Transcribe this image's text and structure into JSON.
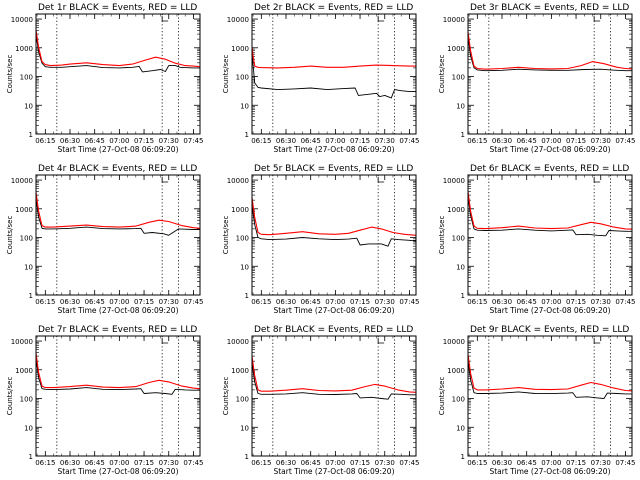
{
  "panel_common": {
    "ylabel": "Counts/sec",
    "xlabel": "Start Time (27-Oct-08 06:09:20)",
    "y_ticks": [
      "1",
      "10",
      "100",
      "1000",
      "10000"
    ],
    "x_ticks": [
      "06:15",
      "06:30",
      "06:45",
      "07:00",
      "07:15",
      "07:30",
      "07:45"
    ]
  },
  "colors": {
    "events": "#000000",
    "lld": "#ff0000",
    "axes": "#000000"
  },
  "chart_data": [
    {
      "type": "line",
      "title": "Det 1r BLACK = Events, RED = LLD",
      "y_scale": "log",
      "ylim": [
        1,
        15000
      ],
      "xlim": [
        "06:09:20",
        "07:49:00"
      ],
      "vlines": [
        "06:22",
        "07:26",
        "07:36"
      ],
      "series": [
        {
          "name": "Events",
          "color": "#000000",
          "x": [
            "06:09:20",
            "06:11",
            "06:13",
            "06:15",
            "06:18",
            "06:25",
            "06:30",
            "06:40",
            "06:50",
            "07:00",
            "07:08",
            "07:12",
            "07:14",
            "07:20",
            "07:25",
            "07:28",
            "07:30",
            "07:34",
            "07:37",
            "07:40",
            "07:45",
            "07:49"
          ],
          "y": [
            2800,
            700,
            290,
            220,
            210,
            210,
            220,
            240,
            205,
            200,
            210,
            225,
            145,
            160,
            175,
            150,
            240,
            240,
            210,
            205,
            200,
            200
          ]
        },
        {
          "name": "LLD",
          "color": "#ff0000",
          "x": [
            "06:09:20",
            "06:11",
            "06:13",
            "06:15",
            "06:18",
            "06:25",
            "06:30",
            "06:40",
            "06:50",
            "07:00",
            "07:08",
            "07:15",
            "07:22",
            "07:28",
            "07:34",
            "07:40",
            "07:45",
            "07:49"
          ],
          "y": [
            4200,
            1000,
            330,
            260,
            240,
            250,
            270,
            300,
            260,
            240,
            270,
            360,
            470,
            400,
            290,
            240,
            230,
            220
          ]
        }
      ]
    },
    {
      "type": "line",
      "title": "Det 2r BLACK = Events, RED = LLD",
      "y_scale": "log",
      "ylim": [
        1,
        15000
      ],
      "xlim": [
        "06:09:20",
        "07:49:00"
      ],
      "vlines": [
        "06:22",
        "07:26",
        "07:36"
      ],
      "series": [
        {
          "name": "Events",
          "color": "#000000",
          "x": [
            "06:09:20",
            "06:10",
            "06:11",
            "06:13",
            "06:15",
            "06:25",
            "06:35",
            "06:45",
            "06:55",
            "07:05",
            "07:12",
            "07:14",
            "07:20",
            "07:25",
            "07:27",
            "07:30",
            "07:34",
            "07:36",
            "07:40",
            "07:45",
            "07:49"
          ],
          "y": [
            700,
            250,
            60,
            42,
            40,
            35,
            37,
            40,
            35,
            38,
            40,
            22,
            24,
            26,
            20,
            22,
            18,
            35,
            32,
            30,
            30
          ]
        },
        {
          "name": "LLD",
          "color": "#ff0000",
          "x": [
            "06:09:20",
            "06:10",
            "06:11",
            "06:13",
            "06:15",
            "06:25",
            "06:35",
            "06:45",
            "06:55",
            "07:05",
            "07:15",
            "07:25",
            "07:35",
            "07:45",
            "07:49"
          ],
          "y": [
            1100,
            500,
            230,
            210,
            205,
            200,
            210,
            230,
            210,
            210,
            230,
            250,
            240,
            230,
            230
          ]
        }
      ]
    },
    {
      "type": "line",
      "title": "Det 3r BLACK = Events, RED = LLD",
      "y_scale": "log",
      "ylim": [
        1,
        15000
      ],
      "xlim": [
        "06:09:20",
        "07:49:00"
      ],
      "vlines": [
        "06:22",
        "07:26",
        "07:36"
      ],
      "series": [
        {
          "name": "Events",
          "color": "#000000",
          "x": [
            "06:09:20",
            "06:11",
            "06:13",
            "06:15",
            "06:20",
            "06:30",
            "06:40",
            "06:50",
            "07:00",
            "07:10",
            "07:20",
            "07:30",
            "07:36",
            "07:40",
            "07:45",
            "07:49"
          ],
          "y": [
            2300,
            500,
            200,
            170,
            160,
            165,
            180,
            170,
            165,
            165,
            175,
            180,
            170,
            165,
            160,
            160
          ]
        },
        {
          "name": "LLD",
          "color": "#ff0000",
          "x": [
            "06:09:20",
            "06:11",
            "06:13",
            "06:15",
            "06:20",
            "06:30",
            "06:40",
            "06:50",
            "07:00",
            "07:10",
            "07:18",
            "07:25",
            "07:32",
            "07:40",
            "07:45",
            "07:49"
          ],
          "y": [
            3600,
            750,
            230,
            190,
            180,
            190,
            210,
            190,
            185,
            190,
            240,
            330,
            280,
            210,
            190,
            185
          ]
        }
      ]
    },
    {
      "type": "line",
      "title": "Det 4r BLACK = Events, RED = LLD",
      "y_scale": "log",
      "ylim": [
        1,
        15000
      ],
      "xlim": [
        "06:09:20",
        "07:49:00"
      ],
      "vlines": [
        "06:22",
        "07:26",
        "07:36"
      ],
      "series": [
        {
          "name": "Events",
          "color": "#000000",
          "x": [
            "06:09:20",
            "06:11",
            "06:13",
            "06:15",
            "06:20",
            "06:30",
            "06:40",
            "06:50",
            "07:00",
            "07:10",
            "07:13",
            "07:15",
            "07:20",
            "07:27",
            "07:30",
            "07:36",
            "07:40",
            "07:45",
            "07:49"
          ],
          "y": [
            2200,
            500,
            210,
            200,
            200,
            210,
            230,
            205,
            200,
            205,
            210,
            140,
            150,
            135,
            120,
            200,
            195,
            190,
            190
          ]
        },
        {
          "name": "LLD",
          "color": "#ff0000",
          "x": [
            "06:09:20",
            "06:11",
            "06:13",
            "06:15",
            "06:20",
            "06:30",
            "06:40",
            "06:50",
            "07:00",
            "07:10",
            "07:18",
            "07:24",
            "07:30",
            "07:38",
            "07:45",
            "07:49"
          ],
          "y": [
            3800,
            800,
            260,
            230,
            230,
            250,
            270,
            240,
            230,
            250,
            340,
            400,
            360,
            260,
            220,
            210
          ]
        }
      ]
    },
    {
      "type": "line",
      "title": "Det 5r BLACK = Events, RED = LLD",
      "y_scale": "log",
      "ylim": [
        1,
        15000
      ],
      "xlim": [
        "06:09:20",
        "07:49:00"
      ],
      "vlines": [
        "06:22",
        "07:26",
        "07:36"
      ],
      "series": [
        {
          "name": "Events",
          "color": "#000000",
          "x": [
            "06:09:20",
            "06:11",
            "06:13",
            "06:15",
            "06:20",
            "06:30",
            "06:40",
            "06:50",
            "07:00",
            "07:08",
            "07:13",
            "07:15",
            "07:20",
            "07:28",
            "07:32",
            "07:34",
            "07:38",
            "07:45",
            "07:49"
          ],
          "y": [
            1400,
            280,
            100,
            90,
            85,
            88,
            100,
            90,
            85,
            88,
            95,
            55,
            60,
            60,
            50,
            90,
            85,
            80,
            75
          ]
        },
        {
          "name": "LLD",
          "color": "#ff0000",
          "x": [
            "06:09:20",
            "06:11",
            "06:13",
            "06:15",
            "06:20",
            "06:30",
            "06:40",
            "06:50",
            "07:00",
            "07:08",
            "07:15",
            "07:22",
            "07:28",
            "07:35",
            "07:42",
            "07:49"
          ],
          "y": [
            2500,
            500,
            150,
            130,
            125,
            140,
            160,
            135,
            130,
            140,
            180,
            230,
            200,
            150,
            130,
            120
          ]
        }
      ]
    },
    {
      "type": "line",
      "title": "Det 6r BLACK = Events, RED = LLD",
      "y_scale": "log",
      "ylim": [
        1,
        15000
      ],
      "xlim": [
        "06:09:20",
        "07:49:00"
      ],
      "vlines": [
        "06:22",
        "07:26",
        "07:36"
      ],
      "series": [
        {
          "name": "Events",
          "color": "#000000",
          "x": [
            "06:09:20",
            "06:11",
            "06:13",
            "06:15",
            "06:20",
            "06:30",
            "06:40",
            "06:50",
            "07:00",
            "07:10",
            "07:13",
            "07:15",
            "07:22",
            "07:28",
            "07:33",
            "07:35",
            "07:40",
            "07:45",
            "07:49"
          ],
          "y": [
            2600,
            560,
            200,
            180,
            175,
            180,
            200,
            180,
            170,
            180,
            185,
            125,
            130,
            120,
            115,
            175,
            170,
            165,
            165
          ]
        },
        {
          "name": "LLD",
          "color": "#ff0000",
          "x": [
            "06:09:20",
            "06:11",
            "06:13",
            "06:15",
            "06:20",
            "06:30",
            "06:40",
            "06:50",
            "07:00",
            "07:10",
            "07:18",
            "07:24",
            "07:30",
            "07:38",
            "07:45",
            "07:49"
          ],
          "y": [
            4000,
            800,
            250,
            210,
            205,
            220,
            250,
            215,
            205,
            215,
            280,
            340,
            300,
            230,
            200,
            195
          ]
        }
      ]
    },
    {
      "type": "line",
      "title": "Det 7r BLACK = Events, RED = LLD",
      "y_scale": "log",
      "ylim": [
        1,
        15000
      ],
      "xlim": [
        "06:09:20",
        "07:49:00"
      ],
      "vlines": [
        "06:22",
        "07:26",
        "07:36"
      ],
      "series": [
        {
          "name": "Events",
          "color": "#000000",
          "x": [
            "06:09:20",
            "06:11",
            "06:13",
            "06:15",
            "06:20",
            "06:30",
            "06:40",
            "06:50",
            "07:00",
            "07:10",
            "07:13",
            "07:15",
            "07:22",
            "07:28",
            "07:32",
            "07:34",
            "07:40",
            "07:45",
            "07:49"
          ],
          "y": [
            2400,
            520,
            220,
            210,
            205,
            215,
            240,
            210,
            205,
            215,
            220,
            150,
            160,
            150,
            140,
            210,
            200,
            195,
            195
          ]
        },
        {
          "name": "LLD",
          "color": "#ff0000",
          "x": [
            "06:09:20",
            "06:11",
            "06:13",
            "06:15",
            "06:20",
            "06:30",
            "06:40",
            "06:50",
            "07:00",
            "07:10",
            "07:18",
            "07:24",
            "07:30",
            "07:38",
            "07:45",
            "07:49"
          ],
          "y": [
            3800,
            780,
            270,
            240,
            240,
            260,
            290,
            250,
            240,
            260,
            360,
            430,
            380,
            270,
            230,
            220
          ]
        }
      ]
    },
    {
      "type": "line",
      "title": "Det 8r BLACK = Events, RED = LLD",
      "y_scale": "log",
      "ylim": [
        1,
        15000
      ],
      "xlim": [
        "06:09:20",
        "07:49:00"
      ],
      "vlines": [
        "06:22",
        "07:26",
        "07:36"
      ],
      "series": [
        {
          "name": "Events",
          "color": "#000000",
          "x": [
            "06:09:20",
            "06:11",
            "06:13",
            "06:15",
            "06:20",
            "06:30",
            "06:40",
            "06:50",
            "07:00",
            "07:10",
            "07:13",
            "07:15",
            "07:22",
            "07:28",
            "07:32",
            "07:34",
            "07:40",
            "07:45",
            "07:49"
          ],
          "y": [
            1800,
            380,
            150,
            140,
            140,
            145,
            160,
            140,
            138,
            145,
            150,
            105,
            110,
            100,
            95,
            145,
            140,
            135,
            135
          ]
        },
        {
          "name": "LLD",
          "color": "#ff0000",
          "x": [
            "06:09:20",
            "06:11",
            "06:13",
            "06:15",
            "06:20",
            "06:30",
            "06:40",
            "06:50",
            "07:00",
            "07:10",
            "07:18",
            "07:24",
            "07:30",
            "07:38",
            "07:45",
            "07:49"
          ],
          "y": [
            3000,
            620,
            200,
            180,
            180,
            195,
            220,
            190,
            185,
            195,
            260,
            310,
            270,
            200,
            170,
            165
          ]
        }
      ]
    },
    {
      "type": "line",
      "title": "Det 9r BLACK = Events, RED = LLD",
      "y_scale": "log",
      "ylim": [
        1,
        15000
      ],
      "xlim": [
        "06:09:20",
        "07:49:00"
      ],
      "vlines": [
        "06:22",
        "07:26",
        "07:36"
      ],
      "series": [
        {
          "name": "Events",
          "color": "#000000",
          "x": [
            "06:09:20",
            "06:11",
            "06:13",
            "06:15",
            "06:20",
            "06:30",
            "06:40",
            "06:50",
            "07:00",
            "07:10",
            "07:13",
            "07:15",
            "07:22",
            "07:28",
            "07:32",
            "07:34",
            "07:40",
            "07:45",
            "07:49"
          ],
          "y": [
            2000,
            430,
            160,
            150,
            150,
            155,
            170,
            150,
            148,
            155,
            160,
            110,
            115,
            105,
            100,
            155,
            150,
            145,
            145
          ]
        },
        {
          "name": "LLD",
          "color": "#ff0000",
          "x": [
            "06:09:20",
            "06:11",
            "06:13",
            "06:15",
            "06:20",
            "06:30",
            "06:40",
            "06:50",
            "07:00",
            "07:10",
            "07:18",
            "07:24",
            "07:30",
            "07:38",
            "07:45",
            "07:49"
          ],
          "y": [
            3500,
            720,
            230,
            200,
            200,
            215,
            240,
            210,
            205,
            215,
            290,
            360,
            310,
            230,
            190,
            185
          ]
        }
      ]
    }
  ]
}
